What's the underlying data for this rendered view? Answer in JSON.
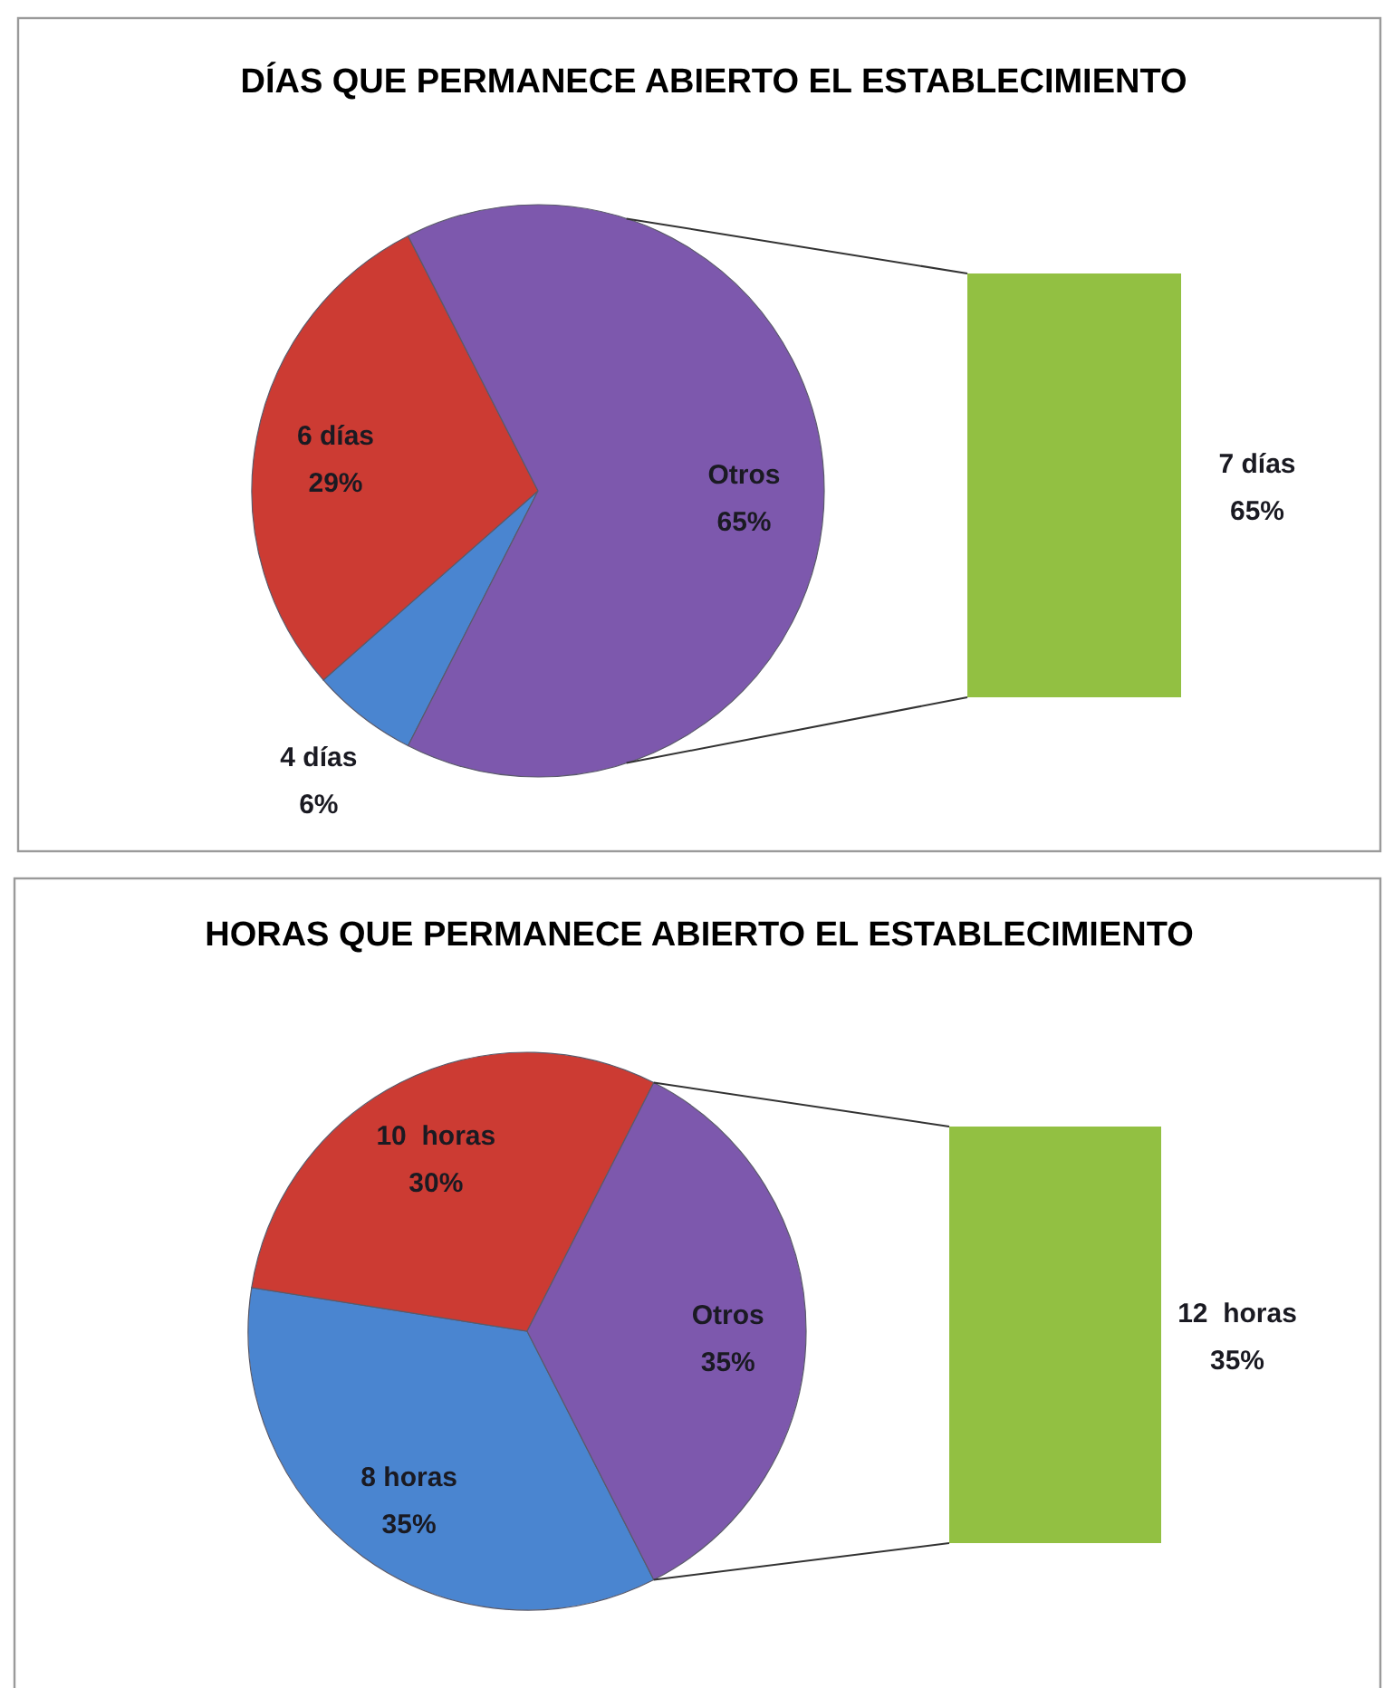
{
  "chart_data": [
    {
      "type": "pie",
      "title": "DÍAS QUE PERMANECE ABIERTO EL ESTABLECIMIENTO",
      "categories": [
        "4 días",
        "6 días",
        "Otros"
      ],
      "values": [
        6,
        29,
        65
      ],
      "value_labels": [
        "6%",
        "29%",
        "65%"
      ],
      "colors": [
        "#4a85d0",
        "#cc3b33",
        "#7d58ad"
      ],
      "annotations": [
        "7 días",
        "65%"
      ]
    },
    {
      "type": "pie",
      "title": "HORAS QUE PERMANECE ABIERTO EL ESTABLECIMIENTO",
      "categories": [
        "8 horas",
        "10  horas",
        "Otros"
      ],
      "values": [
        35,
        30,
        35
      ],
      "value_labels": [
        "35%",
        "30%",
        "35%"
      ],
      "colors": [
        "#4a85d0",
        "#cc3b33",
        "#7d58ad"
      ],
      "annotations": [
        "12  horas",
        "35%"
      ]
    }
  ]
}
